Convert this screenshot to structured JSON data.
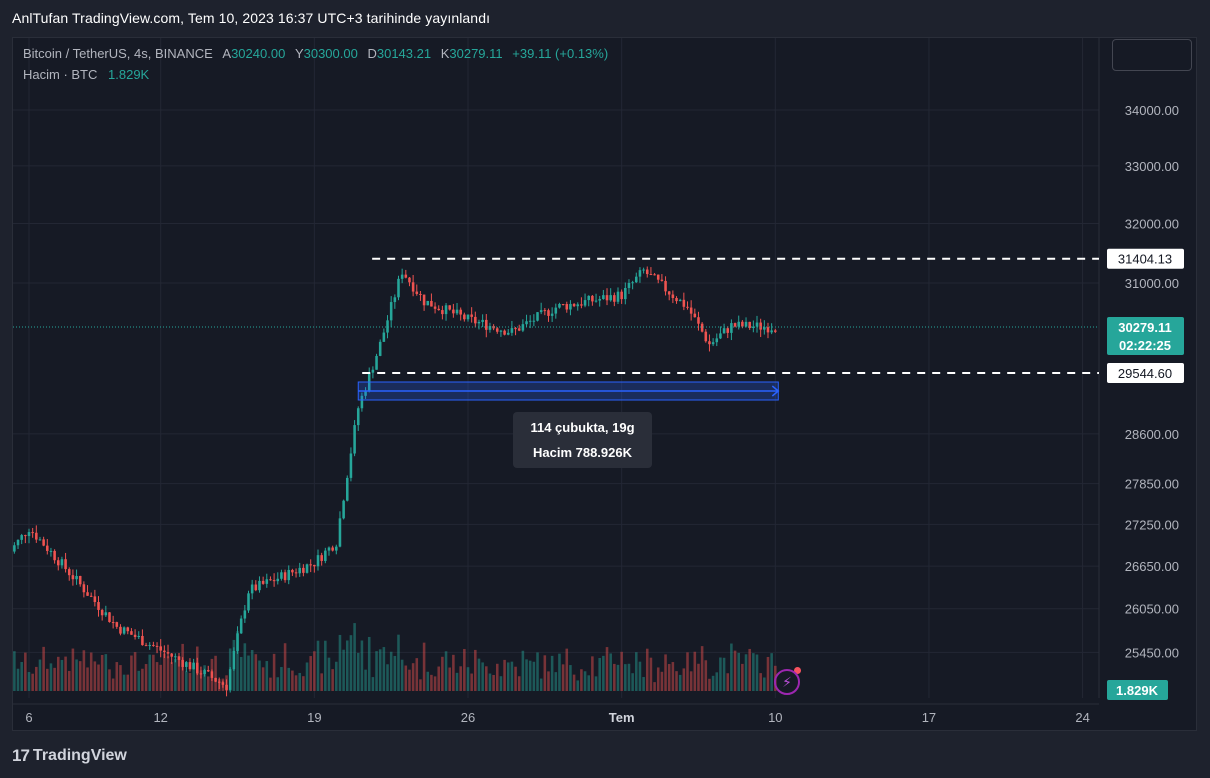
{
  "page_title": "AnlTufan TradingView.com, Tem 10, 2023 16:37 UTC+3 tarihinde yayınlandı",
  "legend": {
    "symbol": "Bitcoin / TetherUS, 4s, BINANCE",
    "open_label": "A",
    "open": "30240.00",
    "high_label": "Y",
    "high": "30300.00",
    "low_label": "D",
    "low": "30143.21",
    "close_label": "K",
    "close": "30279.11",
    "change": "+39.11 (+0.13%)",
    "volume_label": "Hacim · BTC",
    "volume": "1.829K"
  },
  "measure": {
    "line1": "114 çubukta, 19g",
    "line2": "Hacim 788.926K"
  },
  "footer": {
    "brand": "TradingView",
    "logo_glyph": "17"
  },
  "colors": {
    "up": "#26a69a",
    "down": "#ef5350",
    "background": "#161a25",
    "grid": "#232734",
    "measure": "#2962ff",
    "price_tag": "#26a69a"
  },
  "chart_data": {
    "type": "candlestick",
    "x_tick_labels": [
      "6",
      "12",
      "19",
      "26",
      "Tem",
      "10",
      "17",
      "24"
    ],
    "y_tick_labels": [
      "34000.00",
      "33000.00",
      "32000.00",
      "31000.00",
      "28600.00",
      "27850.00",
      "27250.00",
      "26650.00",
      "26050.00",
      "25450.00"
    ],
    "y_tick_values": [
      34000,
      33000,
      32000,
      31000,
      28600,
      27850,
      27250,
      26650,
      26050,
      25450
    ],
    "y_scale": "log",
    "horizontal_lines": [
      {
        "value": 31404.13,
        "label": "31404.13",
        "style": "dashed"
      },
      {
        "value": 29544.6,
        "label": "29544.60",
        "style": "dashed"
      }
    ],
    "last_price": {
      "value": 30279.11,
      "label": "30279.11",
      "countdown": "02:22:25"
    },
    "volume_last_label": "1.829K",
    "key_points": [
      {
        "date": "2023-06-05",
        "price": 26800
      },
      {
        "date": "2023-06-06",
        "price": 27200
      },
      {
        "date": "2023-06-10",
        "price": 25800
      },
      {
        "date": "2023-06-15",
        "price": 25000
      },
      {
        "date": "2023-06-16",
        "price": 26300
      },
      {
        "date": "2023-06-19",
        "price": 26700
      },
      {
        "date": "2023-06-20",
        "price": 27000
      },
      {
        "date": "2023-06-21",
        "price": 29000
      },
      {
        "date": "2023-06-22",
        "price": 30000
      },
      {
        "date": "2023-06-23",
        "price": 31200
      },
      {
        "date": "2023-06-24",
        "price": 30700
      },
      {
        "date": "2023-06-26",
        "price": 30400
      },
      {
        "date": "2023-06-28",
        "price": 30200
      },
      {
        "date": "2023-06-30",
        "price": 30600
      },
      {
        "date": "2023-07-03",
        "price": 30800
      },
      {
        "date": "2023-07-04",
        "price": 31200
      },
      {
        "date": "2023-07-06",
        "price": 30600
      },
      {
        "date": "2023-07-07",
        "price": 30000
      },
      {
        "date": "2023-07-08",
        "price": 30300
      },
      {
        "date": "2023-07-10",
        "price": 30279.11
      }
    ],
    "measure_range": {
      "start": "2023-06-21",
      "end": "2023-07-10",
      "bars": 114,
      "volume": "788.926K"
    }
  }
}
